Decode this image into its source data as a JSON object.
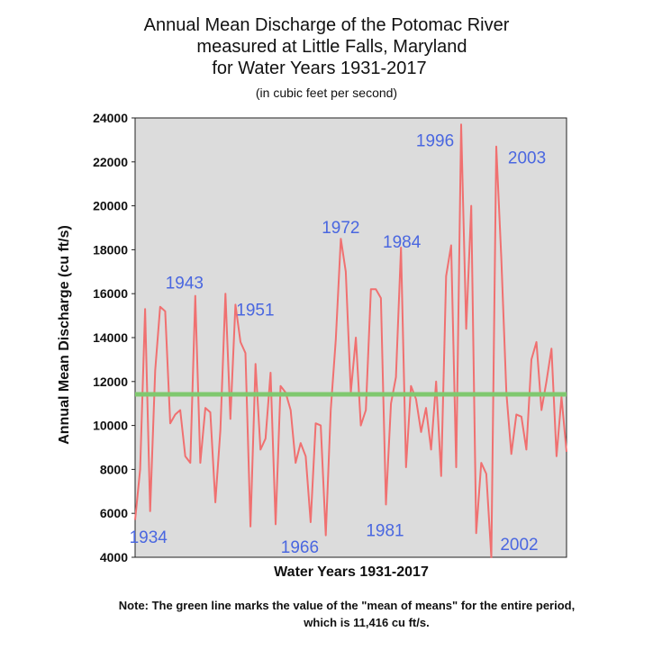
{
  "chart_data": {
    "type": "line",
    "title_lines": [
      "Annual Mean Discharge of the Potomac River",
      "measured at Little Falls, Maryland",
      "for Water Years 1931-2017"
    ],
    "subtitle": "(in cubic feet per second)",
    "xlabel": "Water Years 1931-2017",
    "ylabel": "Annual Mean Discharge (cu ft/s)",
    "ylim": [
      4000,
      24000
    ],
    "xlim": [
      1931,
      2017
    ],
    "yticks": [
      4000,
      6000,
      8000,
      10000,
      12000,
      14000,
      16000,
      18000,
      20000,
      22000,
      24000
    ],
    "ytick_labels": [
      "4000",
      "6000",
      "8000",
      "10000",
      "12000",
      "14000",
      "16000",
      "18000",
      "20000",
      "22000",
      "24000"
    ],
    "series": [
      {
        "name": "Annual mean discharge",
        "color": "#f07070",
        "x": [
          1931,
          1932,
          1933,
          1934,
          1935,
          1936,
          1937,
          1938,
          1939,
          1940,
          1941,
          1942,
          1943,
          1944,
          1945,
          1946,
          1947,
          1948,
          1949,
          1950,
          1951,
          1952,
          1953,
          1954,
          1955,
          1956,
          1957,
          1958,
          1959,
          1960,
          1961,
          1962,
          1963,
          1964,
          1965,
          1966,
          1967,
          1968,
          1969,
          1970,
          1971,
          1972,
          1973,
          1974,
          1975,
          1976,
          1977,
          1978,
          1979,
          1980,
          1981,
          1982,
          1983,
          1984,
          1985,
          1986,
          1987,
          1988,
          1989,
          1990,
          1991,
          1992,
          1993,
          1994,
          1995,
          1996,
          1997,
          1998,
          1999,
          2000,
          2001,
          2002,
          2003,
          2004,
          2005,
          2006,
          2007,
          2008,
          2009,
          2010,
          2011,
          2012,
          2013,
          2014,
          2015,
          2016,
          2017
        ],
        "values": [
          5700,
          8000,
          15300,
          6100,
          12500,
          15400,
          15200,
          10100,
          10500,
          10700,
          8600,
          8300,
          15900,
          8300,
          10800,
          10600,
          6500,
          9800,
          16000,
          10300,
          15500,
          13800,
          13300,
          5400,
          12800,
          8900,
          9400,
          12400,
          5500,
          11800,
          11500,
          10700,
          8300,
          9200,
          8600,
          5600,
          10100,
          10000,
          5000,
          10700,
          13900,
          18500,
          17000,
          11500,
          14000,
          10000,
          10700,
          16200,
          16200,
          15800,
          6400,
          11000,
          12200,
          18100,
          8100,
          11800,
          11200,
          9700,
          10800,
          8900,
          12000,
          7700,
          16800,
          18200,
          8100,
          23700,
          14400,
          20000,
          5100,
          8300,
          7800,
          4000,
          22700,
          17600,
          11500,
          8700,
          10500,
          10400,
          8900,
          13000,
          13800,
          10700,
          12000,
          13500,
          8600,
          11300,
          8800
        ]
      }
    ],
    "reference_line": {
      "name": "mean of means",
      "value": 11416,
      "color": "#7fc86f"
    },
    "annotations": [
      {
        "label": "1943",
        "x": 1943,
        "y": 15900
      },
      {
        "label": "1951",
        "x": 1951,
        "y": 15500
      },
      {
        "label": "1934",
        "x": 1934,
        "y": 6100
      },
      {
        "label": "1966",
        "x": 1966,
        "y": 5600
      },
      {
        "label": "1972",
        "x": 1972,
        "y": 18500
      },
      {
        "label": "1981",
        "x": 1981,
        "y": 6400
      },
      {
        "label": "1984",
        "x": 1984,
        "y": 18100
      },
      {
        "label": "1996",
        "x": 1996,
        "y": 23700
      },
      {
        "label": "2003",
        "x": 2003,
        "y": 22700
      },
      {
        "label": "2002",
        "x": 2002,
        "y": 4000
      }
    ],
    "annotation_color": "#4a67e0",
    "plot_background": "#dcdcdc"
  },
  "note_lines": [
    "Note:  The green line marks the value of the \"mean of means\" for the entire period,",
    "which is 11,416 cu ft/s."
  ]
}
